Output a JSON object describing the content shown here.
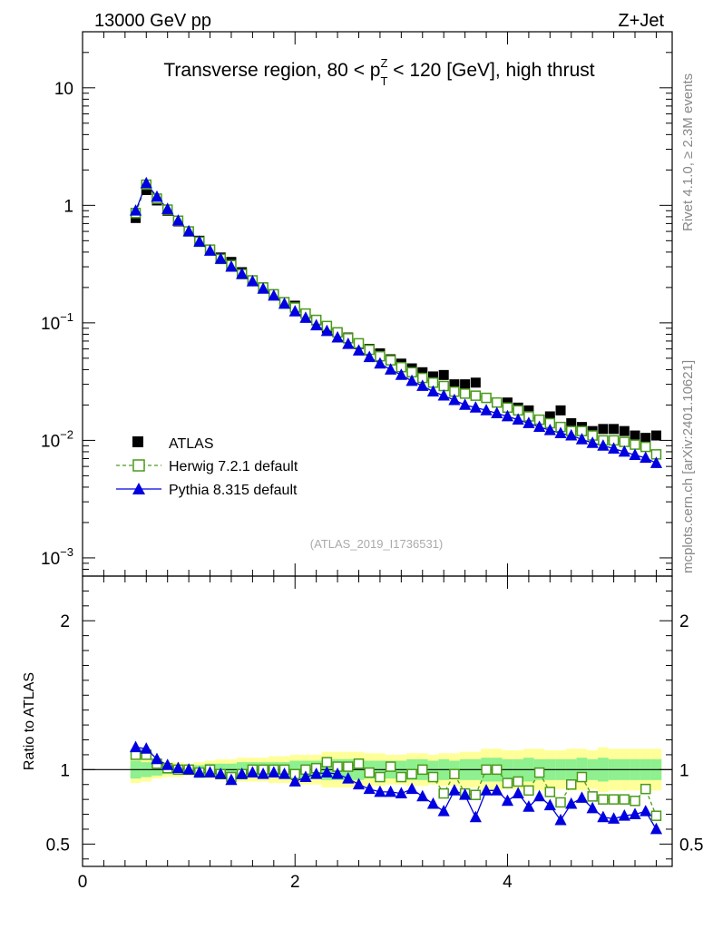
{
  "header": {
    "energy_label": "13000 GeV pp",
    "process_label": "Z+Jet",
    "plot_title": "Transverse region, 80 < p_T^Z < 120 [GeV], high thrust",
    "analysis_id": "(ATLAS_2019_I1736531)",
    "side_rivet": "Rivet 4.1.0, ≥ 2.3M events",
    "side_mcplots": "mcplots.cern.ch [arXiv:2401.10621]"
  },
  "colors": {
    "atlas": "#000000",
    "herwig": "#4a9a1a",
    "pythia": "#0000e0",
    "band_inner": "#8ef08e",
    "band_outer": "#ffff99"
  },
  "chart_data": {
    "type": "scatter",
    "legend": [
      "ATLAS",
      "Herwig 7.2.1 default",
      "Pythia 8.315 default"
    ],
    "main": {
      "yscale": "log",
      "ylim": [
        0.0007,
        30
      ],
      "ytick_labels": [
        "10",
        "1",
        "10^-1",
        "10^-2",
        "10^-3"
      ],
      "ytick_values": [
        10,
        1,
        0.1,
        0.01,
        0.001
      ]
    },
    "ratio": {
      "ylabel": "Ratio to ATLAS",
      "ylim": [
        0.35,
        2.3
      ],
      "ytick_labels": [
        "2",
        "1",
        "0.5"
      ],
      "ytick_values": [
        2,
        1,
        0.5
      ]
    },
    "xlim": [
      0,
      5.55
    ],
    "xtick_labels": [
      "0",
      "2",
      "4"
    ],
    "xtick_values": [
      0,
      2,
      4
    ],
    "x": [
      0.5,
      0.6,
      0.7,
      0.8,
      0.9,
      1.0,
      1.1,
      1.2,
      1.3,
      1.4,
      1.5,
      1.6,
      1.7,
      1.8,
      1.9,
      2.0,
      2.1,
      2.2,
      2.3,
      2.4,
      2.5,
      2.6,
      2.7,
      2.8,
      2.9,
      3.0,
      3.1,
      3.2,
      3.3,
      3.4,
      3.5,
      3.6,
      3.7,
      3.8,
      3.9,
      4.0,
      4.1,
      4.2,
      4.3,
      4.4,
      4.5,
      4.6,
      4.7,
      4.8,
      4.9,
      5.0,
      5.1,
      5.2,
      5.3,
      5.4
    ],
    "series": [
      {
        "name": "ATLAS",
        "marker": "square-filled",
        "values": [
          0.78,
          1.35,
          1.1,
          0.9,
          0.73,
          0.6,
          0.5,
          0.42,
          0.36,
          0.33,
          0.27,
          0.23,
          0.2,
          0.175,
          0.15,
          0.14,
          0.12,
          0.105,
          0.09,
          0.083,
          0.075,
          0.066,
          0.06,
          0.055,
          0.049,
          0.045,
          0.041,
          0.038,
          0.035,
          0.036,
          0.03,
          0.03,
          0.031,
          0.023,
          0.021,
          0.021,
          0.019,
          0.018,
          0.015,
          0.016,
          0.018,
          0.014,
          0.013,
          0.012,
          0.0125,
          0.0125,
          0.012,
          0.011,
          0.0105,
          0.011
        ]
      },
      {
        "name": "Herwig 7.2.1 default",
        "marker": "square-open",
        "values": [
          0.86,
          1.5,
          1.14,
          0.92,
          0.74,
          0.6,
          0.49,
          0.42,
          0.35,
          0.31,
          0.26,
          0.23,
          0.2,
          0.175,
          0.15,
          0.135,
          0.12,
          0.106,
          0.094,
          0.083,
          0.074,
          0.067,
          0.059,
          0.052,
          0.048,
          0.042,
          0.038,
          0.034,
          0.031,
          0.029,
          0.026,
          0.025,
          0.024,
          0.023,
          0.021,
          0.019,
          0.018,
          0.016,
          0.015,
          0.014,
          0.013,
          0.012,
          0.012,
          0.011,
          0.01,
          0.01,
          0.0097,
          0.0092,
          0.0088,
          0.0076
        ]
      },
      {
        "name": "Pythia 8.315 default",
        "marker": "triangle-filled",
        "values": [
          0.9,
          1.54,
          1.18,
          0.93,
          0.74,
          0.6,
          0.49,
          0.41,
          0.35,
          0.3,
          0.26,
          0.225,
          0.195,
          0.17,
          0.145,
          0.125,
          0.11,
          0.095,
          0.085,
          0.075,
          0.066,
          0.058,
          0.051,
          0.045,
          0.04,
          0.036,
          0.032,
          0.029,
          0.026,
          0.024,
          0.022,
          0.02,
          0.019,
          0.018,
          0.017,
          0.016,
          0.015,
          0.014,
          0.013,
          0.0122,
          0.0115,
          0.011,
          0.0102,
          0.0095,
          0.009,
          0.0085,
          0.008,
          0.0075,
          0.0071,
          0.0064
        ]
      }
    ],
    "ratio_series": [
      {
        "name": "Herwig 7.2.1 default",
        "values": [
          1.1,
          1.1,
          1.04,
          1.01,
          1.0,
          1.0,
          0.98,
          1.0,
          0.97,
          0.95,
          0.97,
          1.0,
          1.0,
          1.0,
          1.0,
          0.97,
          1.0,
          1.01,
          1.05,
          1.02,
          1.02,
          1.04,
          0.98,
          0.95,
          1.02,
          0.95,
          0.97,
          1.0,
          0.95,
          0.84,
          0.97,
          0.84,
          0.83,
          1.0,
          1.0,
          0.91,
          0.92,
          0.86,
          0.98,
          0.85,
          0.78,
          0.9,
          0.95,
          0.82,
          0.8,
          0.8,
          0.8,
          0.79,
          0.87,
          0.69
        ]
      },
      {
        "name": "Pythia 8.315 default",
        "values": [
          1.15,
          1.14,
          1.07,
          1.03,
          1.01,
          1.0,
          0.98,
          0.98,
          0.97,
          0.93,
          0.97,
          0.98,
          0.97,
          0.98,
          0.97,
          0.92,
          0.95,
          0.97,
          0.98,
          0.97,
          0.94,
          0.9,
          0.87,
          0.85,
          0.85,
          0.84,
          0.87,
          0.82,
          0.77,
          0.72,
          0.86,
          0.83,
          0.68,
          0.86,
          0.86,
          0.79,
          0.84,
          0.75,
          0.82,
          0.76,
          0.66,
          0.77,
          0.81,
          0.74,
          0.68,
          0.67,
          0.69,
          0.7,
          0.72,
          0.6
        ]
      }
    ],
    "uncertainty_band": {
      "inner_halfwidth": [
        0.06,
        0.05,
        0.04,
        0.03,
        0.03,
        0.02,
        0.03,
        0.04,
        0.04,
        0.04,
        0.05,
        0.05,
        0.05,
        0.05,
        0.05,
        0.06,
        0.06,
        0.06,
        0.07,
        0.07,
        0.07,
        0.07,
        0.06,
        0.06,
        0.06,
        0.06,
        0.07,
        0.07,
        0.06,
        0.07,
        0.06,
        0.07,
        0.07,
        0.08,
        0.08,
        0.07,
        0.07,
        0.08,
        0.07,
        0.07,
        0.07,
        0.07,
        0.08,
        0.07,
        0.08,
        0.07,
        0.07,
        0.07,
        0.07,
        0.07
      ],
      "outer_halfwidth": [
        0.09,
        0.08,
        0.06,
        0.05,
        0.05,
        0.04,
        0.05,
        0.06,
        0.07,
        0.07,
        0.08,
        0.08,
        0.08,
        0.09,
        0.09,
        0.1,
        0.1,
        0.1,
        0.12,
        0.12,
        0.12,
        0.12,
        0.11,
        0.11,
        0.1,
        0.1,
        0.11,
        0.11,
        0.1,
        0.11,
        0.11,
        0.12,
        0.12,
        0.14,
        0.14,
        0.13,
        0.13,
        0.14,
        0.14,
        0.13,
        0.13,
        0.14,
        0.14,
        0.13,
        0.15,
        0.14,
        0.14,
        0.14,
        0.14,
        0.14
      ]
    }
  }
}
